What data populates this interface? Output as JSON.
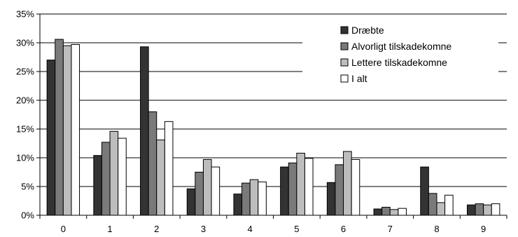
{
  "chart_data": {
    "type": "bar",
    "categories": [
      "0",
      "1",
      "2",
      "3",
      "4",
      "5",
      "6",
      "7",
      "8",
      "9"
    ],
    "series": [
      {
        "name": "Dræbte",
        "color": "#333333",
        "values": [
          27.0,
          10.4,
          29.3,
          4.6,
          3.7,
          8.4,
          5.7,
          1.1,
          8.4,
          1.8
        ]
      },
      {
        "name": "Alvorligt tilskadekomne",
        "color": "#7a7a7a",
        "values": [
          30.6,
          12.7,
          18.0,
          7.5,
          5.6,
          9.1,
          8.8,
          1.4,
          3.8,
          2.0
        ]
      },
      {
        "name": "Lettere tilskadekomne",
        "color": "#bdbdbd",
        "values": [
          29.5,
          14.6,
          13.1,
          9.7,
          6.2,
          10.8,
          11.1,
          1.0,
          2.2,
          1.8
        ]
      },
      {
        "name": "I alt",
        "color": "#ffffff",
        "values": [
          29.7,
          13.4,
          16.3,
          8.4,
          5.8,
          9.9,
          9.7,
          1.2,
          3.5,
          2.0
        ]
      }
    ],
    "yticks": [
      "0%",
      "5%",
      "10%",
      "15%",
      "20%",
      "25%",
      "30%",
      "35%"
    ],
    "ylim": [
      0,
      35
    ],
    "grid": true,
    "legend": "top-right"
  }
}
